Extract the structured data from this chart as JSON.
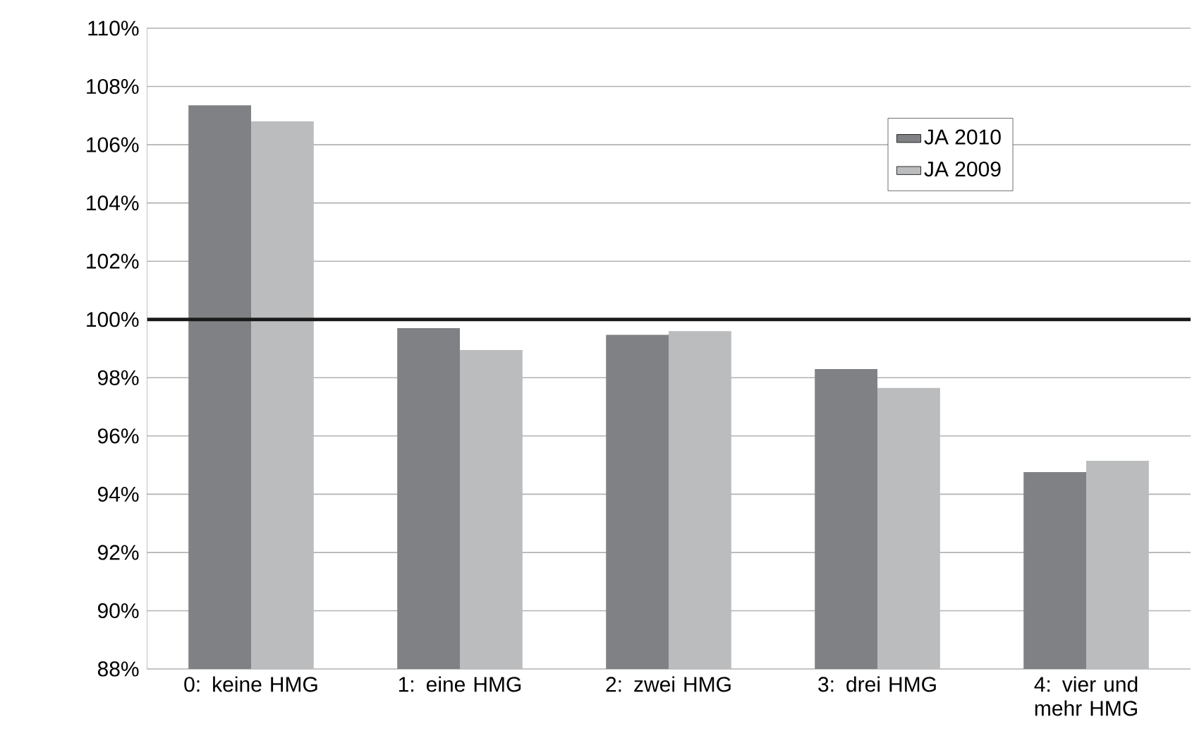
{
  "chart_data": {
    "type": "bar",
    "categories": [
      "0: keine HMG",
      "1: eine HMG",
      "2: zwei HMG",
      "3: drei HMG",
      "4: vier und mehr HMG"
    ],
    "series": [
      {
        "name": "JA 2010",
        "color": "#808184",
        "values": [
          107.35,
          99.7,
          99.47,
          98.3,
          94.76
        ]
      },
      {
        "name": "JA 2009",
        "color": "#bbbcbe",
        "values": [
          106.8,
          98.95,
          99.6,
          97.65,
          95.15
        ]
      }
    ],
    "ylim": [
      88,
      110
    ],
    "yticks": [
      {
        "value": 88,
        "label": "88%"
      },
      {
        "value": 90,
        "label": "90%"
      },
      {
        "value": 92,
        "label": "92%"
      },
      {
        "value": 94,
        "label": "94%"
      },
      {
        "value": 96,
        "label": "96%"
      },
      {
        "value": 98,
        "label": "98%"
      },
      {
        "value": 100,
        "label": "100%"
      },
      {
        "value": 102,
        "label": "102%"
      },
      {
        "value": 104,
        "label": "104%"
      },
      {
        "value": 106,
        "label": "106%"
      },
      {
        "value": 108,
        "label": "108%"
      },
      {
        "value": 110,
        "label": "110%"
      }
    ],
    "ref_lines": [
      {
        "axis": "y",
        "value": 100,
        "color": "#1a1a1a"
      }
    ],
    "grid": "y",
    "legend": "top right"
  }
}
